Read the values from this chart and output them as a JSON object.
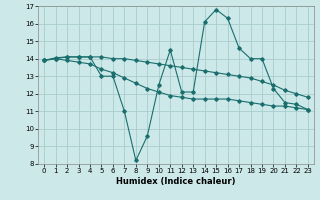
{
  "xlabel": "Humidex (Indice chaleur)",
  "bg_color": "#cce8e8",
  "grid_color": "#aacccc",
  "line_color": "#1a6e6e",
  "xlim": [
    -0.5,
    23.5
  ],
  "ylim": [
    8,
    17
  ],
  "xticks": [
    0,
    1,
    2,
    3,
    4,
    5,
    6,
    7,
    8,
    9,
    10,
    11,
    12,
    13,
    14,
    15,
    16,
    17,
    18,
    19,
    20,
    21,
    22,
    23
  ],
  "yticks": [
    8,
    9,
    10,
    11,
    12,
    13,
    14,
    15,
    16,
    17
  ],
  "series": [
    {
      "x": [
        0,
        1,
        2,
        3,
        4,
        5,
        6,
        7,
        8,
        9,
        10,
        11,
        12,
        13,
        14,
        15,
        16,
        17,
        18,
        19,
        20,
        21,
        22,
        23
      ],
      "y": [
        13.9,
        14.0,
        14.1,
        14.1,
        14.1,
        13.0,
        13.0,
        11.0,
        8.2,
        9.6,
        12.5,
        14.5,
        12.1,
        12.1,
        16.1,
        16.8,
        16.3,
        14.6,
        14.0,
        14.0,
        12.3,
        11.5,
        11.4,
        11.1
      ]
    },
    {
      "x": [
        0,
        1,
        2,
        3,
        4,
        5,
        6,
        7,
        8,
        9,
        10,
        11,
        12,
        13,
        14,
        15,
        16,
        17,
        18,
        19,
        20,
        21,
        22,
        23
      ],
      "y": [
        13.9,
        14.05,
        14.1,
        14.1,
        14.1,
        14.1,
        14.0,
        14.0,
        13.9,
        13.8,
        13.7,
        13.6,
        13.5,
        13.4,
        13.3,
        13.2,
        13.1,
        13.0,
        12.9,
        12.7,
        12.5,
        12.2,
        12.0,
        11.8
      ]
    },
    {
      "x": [
        0,
        1,
        2,
        3,
        4,
        5,
        6,
        7,
        8,
        9,
        10,
        11,
        12,
        13,
        14,
        15,
        16,
        17,
        18,
        19,
        20,
        21,
        22,
        23
      ],
      "y": [
        13.9,
        14.0,
        13.9,
        13.8,
        13.7,
        13.4,
        13.2,
        12.9,
        12.6,
        12.3,
        12.1,
        11.9,
        11.8,
        11.7,
        11.7,
        11.7,
        11.7,
        11.6,
        11.5,
        11.4,
        11.3,
        11.3,
        11.2,
        11.1
      ]
    }
  ]
}
